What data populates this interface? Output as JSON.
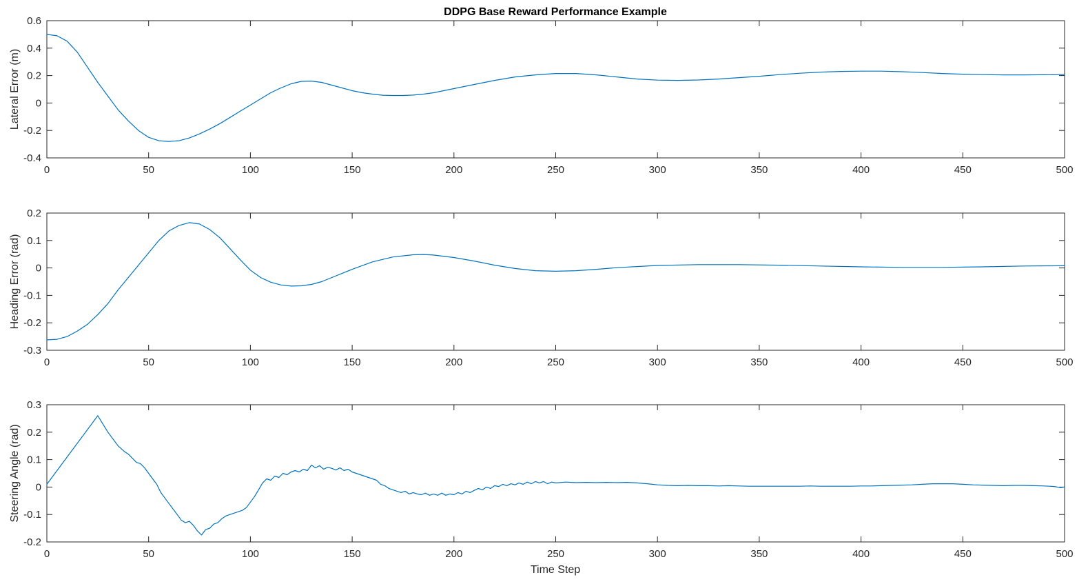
{
  "figure": {
    "title": "DDPG Base Reward Performance Example",
    "xlabel": "Time Step"
  },
  "colors": {
    "line": "#0072bd",
    "axes": "#262626",
    "background": "#ffffff"
  },
  "chart_data": [
    {
      "type": "line",
      "title": "DDPG Base Reward Performance Example",
      "ylabel": "Lateral Error (m)",
      "xlabel": "",
      "xlim": [
        0,
        500
      ],
      "ylim": [
        -0.4,
        0.6
      ],
      "xticks": [
        "0",
        "50",
        "100",
        "150",
        "200",
        "250",
        "300",
        "350",
        "400",
        "450",
        "500"
      ],
      "yticks": [
        "-0.4",
        "-0.2",
        "0",
        "0.2",
        "0.4",
        "0.6"
      ],
      "grid": false,
      "series": [
        {
          "x": [
            0,
            5,
            10,
            15,
            20,
            25,
            30,
            35,
            40,
            45,
            50,
            55,
            60,
            65,
            70,
            75,
            80,
            85,
            90,
            95,
            100,
            105,
            110,
            115,
            120,
            125,
            130,
            135,
            140,
            145,
            150,
            155,
            160,
            165,
            170,
            175,
            180,
            185,
            190,
            195,
            200,
            210,
            220,
            230,
            240,
            250,
            260,
            270,
            280,
            290,
            300,
            310,
            320,
            330,
            340,
            350,
            360,
            370,
            380,
            390,
            400,
            410,
            420,
            430,
            440,
            450,
            460,
            470,
            480,
            490,
            500
          ],
          "y": [
            0.5,
            0.49,
            0.45,
            0.37,
            0.26,
            0.15,
            0.05,
            -0.05,
            -0.13,
            -0.2,
            -0.25,
            -0.275,
            -0.28,
            -0.275,
            -0.255,
            -0.225,
            -0.19,
            -0.15,
            -0.105,
            -0.06,
            -0.015,
            0.03,
            0.075,
            0.11,
            0.14,
            0.158,
            0.16,
            0.15,
            0.13,
            0.11,
            0.09,
            0.075,
            0.065,
            0.057,
            0.055,
            0.055,
            0.058,
            0.065,
            0.075,
            0.09,
            0.105,
            0.135,
            0.165,
            0.19,
            0.205,
            0.215,
            0.215,
            0.205,
            0.19,
            0.175,
            0.167,
            0.165,
            0.168,
            0.175,
            0.185,
            0.195,
            0.207,
            0.217,
            0.225,
            0.23,
            0.232,
            0.232,
            0.228,
            0.222,
            0.215,
            0.21,
            0.207,
            0.205,
            0.205,
            0.206,
            0.207
          ]
        }
      ]
    },
    {
      "type": "line",
      "ylabel": "Heading Error (rad)",
      "xlabel": "",
      "xlim": [
        0,
        500
      ],
      "ylim": [
        -0.3,
        0.2
      ],
      "xticks": [
        "0",
        "50",
        "100",
        "150",
        "200",
        "250",
        "300",
        "350",
        "400",
        "450",
        "500"
      ],
      "yticks": [
        "-0.3",
        "-0.2",
        "-0.1",
        "0",
        "0.1",
        "0.2"
      ],
      "grid": false,
      "series": [
        {
          "x": [
            0,
            5,
            10,
            15,
            20,
            25,
            30,
            35,
            40,
            45,
            50,
            55,
            60,
            65,
            70,
            75,
            80,
            85,
            90,
            95,
            100,
            105,
            110,
            115,
            120,
            125,
            130,
            135,
            140,
            150,
            160,
            170,
            180,
            185,
            190,
            200,
            210,
            220,
            230,
            240,
            250,
            260,
            270,
            280,
            300,
            320,
            340,
            360,
            380,
            400,
            420,
            440,
            460,
            480,
            500
          ],
          "y": [
            -0.262,
            -0.26,
            -0.25,
            -0.23,
            -0.205,
            -0.17,
            -0.13,
            -0.08,
            -0.035,
            0.01,
            0.055,
            0.1,
            0.135,
            0.155,
            0.165,
            0.16,
            0.14,
            0.11,
            0.07,
            0.03,
            -0.008,
            -0.035,
            -0.052,
            -0.062,
            -0.066,
            -0.065,
            -0.06,
            -0.05,
            -0.035,
            -0.005,
            0.022,
            0.04,
            0.048,
            0.049,
            0.047,
            0.038,
            0.025,
            0.01,
            -0.002,
            -0.01,
            -0.012,
            -0.01,
            -0.005,
            0.001,
            0.009,
            0.012,
            0.012,
            0.01,
            0.007,
            0.004,
            0.002,
            0.002,
            0.004,
            0.007,
            0.008
          ]
        }
      ]
    },
    {
      "type": "line",
      "ylabel": "Steering Angle (rad)",
      "xlabel": "Time Step",
      "xlim": [
        0,
        500
      ],
      "ylim": [
        -0.2,
        0.3
      ],
      "xticks": [
        "0",
        "50",
        "100",
        "150",
        "200",
        "250",
        "300",
        "350",
        "400",
        "450",
        "500"
      ],
      "yticks": [
        "-0.2",
        "-0.1",
        "0",
        "0.1",
        "0.2",
        "0.3"
      ],
      "grid": false,
      "series": [
        {
          "x": [
            0,
            25,
            30,
            35,
            38,
            40,
            42,
            44,
            46,
            48,
            50,
            52,
            54,
            56,
            58,
            60,
            62,
            64,
            66,
            68,
            70,
            72,
            74,
            76,
            78,
            80,
            82,
            84,
            86,
            88,
            90,
            92,
            94,
            96,
            98,
            100,
            102,
            104,
            106,
            108,
            110,
            112,
            114,
            116,
            118,
            120,
            122,
            124,
            126,
            128,
            130,
            132,
            134,
            136,
            138,
            140,
            142,
            144,
            146,
            148,
            150,
            152,
            154,
            156,
            158,
            160,
            162,
            164,
            166,
            168,
            170,
            172,
            174,
            176,
            178,
            180,
            182,
            184,
            186,
            188,
            190,
            192,
            194,
            196,
            198,
            200,
            202,
            204,
            206,
            208,
            210,
            212,
            214,
            216,
            218,
            220,
            222,
            224,
            226,
            228,
            230,
            232,
            234,
            236,
            238,
            240,
            242,
            244,
            246,
            248,
            250,
            255,
            260,
            265,
            270,
            275,
            280,
            285,
            290,
            295,
            300,
            305,
            310,
            315,
            320,
            325,
            330,
            335,
            340,
            345,
            350,
            355,
            360,
            365,
            370,
            375,
            380,
            385,
            390,
            395,
            400,
            405,
            410,
            415,
            420,
            425,
            430,
            435,
            440,
            445,
            450,
            455,
            460,
            465,
            470,
            475,
            480,
            485,
            490,
            495,
            498,
            500
          ],
          "y": [
            0.01,
            0.26,
            0.2,
            0.15,
            0.13,
            0.12,
            0.105,
            0.09,
            0.085,
            0.07,
            0.05,
            0.03,
            0.01,
            -0.02,
            -0.04,
            -0.06,
            -0.08,
            -0.1,
            -0.12,
            -0.13,
            -0.125,
            -0.14,
            -0.16,
            -0.175,
            -0.155,
            -0.15,
            -0.135,
            -0.13,
            -0.115,
            -0.105,
            -0.1,
            -0.095,
            -0.09,
            -0.085,
            -0.075,
            -0.055,
            -0.035,
            -0.01,
            0.015,
            0.03,
            0.025,
            0.04,
            0.035,
            0.05,
            0.045,
            0.055,
            0.06,
            0.055,
            0.065,
            0.06,
            0.08,
            0.07,
            0.078,
            0.065,
            0.072,
            0.068,
            0.062,
            0.07,
            0.06,
            0.065,
            0.055,
            0.05,
            0.045,
            0.04,
            0.035,
            0.03,
            0.025,
            0.01,
            0.005,
            -0.005,
            -0.01,
            -0.015,
            -0.02,
            -0.015,
            -0.025,
            -0.02,
            -0.025,
            -0.028,
            -0.022,
            -0.03,
            -0.025,
            -0.03,
            -0.022,
            -0.03,
            -0.025,
            -0.028,
            -0.02,
            -0.025,
            -0.015,
            -0.02,
            -0.012,
            -0.005,
            -0.01,
            0.0,
            -0.005,
            0.005,
            0.002,
            0.01,
            0.005,
            0.012,
            0.008,
            0.015,
            0.01,
            0.018,
            0.012,
            0.02,
            0.015,
            0.02,
            0.012,
            0.018,
            0.015,
            0.018,
            0.016,
            0.017,
            0.016,
            0.017,
            0.016,
            0.017,
            0.015,
            0.012,
            0.008,
            0.006,
            0.005,
            0.006,
            0.005,
            0.005,
            0.004,
            0.005,
            0.004,
            0.003,
            0.003,
            0.003,
            0.003,
            0.003,
            0.003,
            0.004,
            0.003,
            0.003,
            0.003,
            0.003,
            0.004,
            0.004,
            0.005,
            0.006,
            0.007,
            0.008,
            0.01,
            0.012,
            0.012,
            0.012,
            0.01,
            0.008,
            0.007,
            0.006,
            0.005,
            0.006,
            0.006,
            0.005,
            0.004,
            0.002,
            -0.002,
            0.0
          ]
        }
      ]
    }
  ]
}
